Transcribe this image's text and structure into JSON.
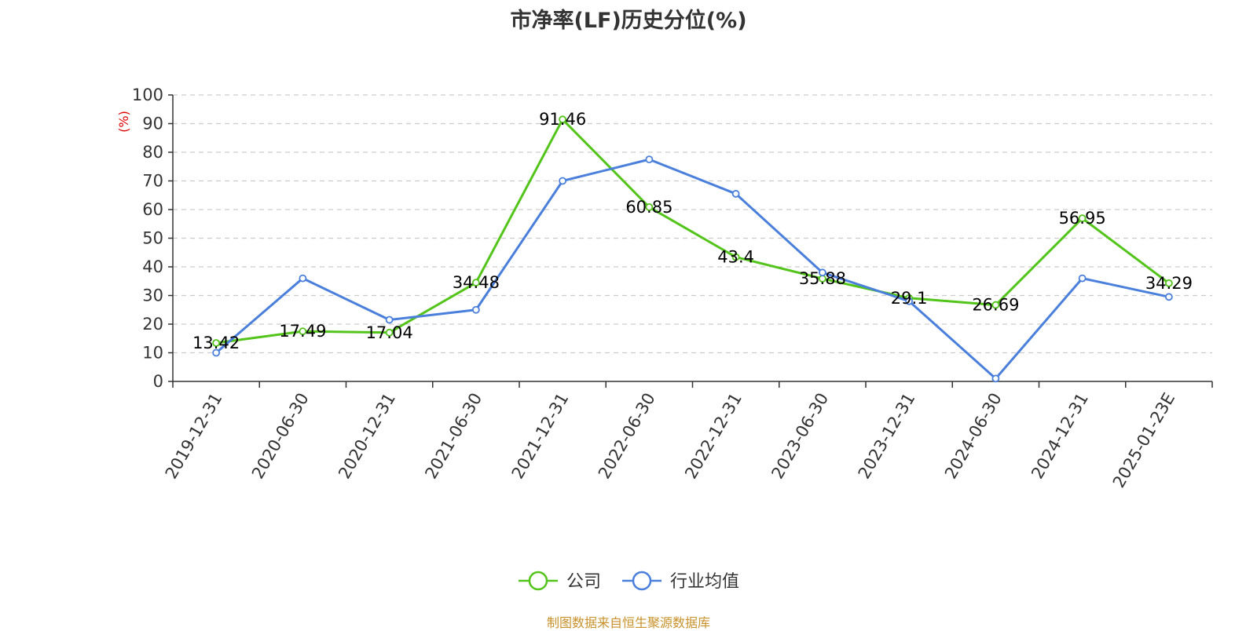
{
  "title": "市净率(LF)历史分位(%)",
  "source": "制图数据来自恒生聚源数据库",
  "chart_data": {
    "type": "line",
    "title": "市净率(LF)历史分位(%)",
    "xlabel": "",
    "ylabel": "(%)",
    "ylim": [
      0,
      100
    ],
    "yticks": [
      0,
      10,
      20,
      30,
      40,
      50,
      60,
      70,
      80,
      90,
      100
    ],
    "grid": "horizontal-dashed",
    "legend": "bottom-center",
    "categories": [
      "2019-12-31",
      "2020-06-30",
      "2020-12-31",
      "2021-06-30",
      "2021-12-31",
      "2022-06-30",
      "2022-12-31",
      "2023-06-30",
      "2023-12-31",
      "2024-06-30",
      "2024-12-31",
      "2025-01-23E"
    ],
    "series": [
      {
        "name": "公司",
        "color": "#52c41a",
        "show_labels": true,
        "values": [
          13.42,
          17.49,
          17.04,
          34.48,
          91.46,
          60.85,
          43.4,
          35.88,
          29.1,
          26.69,
          56.95,
          34.29
        ],
        "labels": [
          "13.42",
          "17.49",
          "17.04",
          "34.48",
          "91.46",
          "60.85",
          "43.4",
          "35.88",
          "29.1",
          "26.69",
          "56.95",
          "34.29"
        ]
      },
      {
        "name": "行业均值",
        "color": "#4a7fdc",
        "show_labels": false,
        "values": [
          10,
          36,
          21.5,
          25,
          70,
          77.5,
          65.5,
          38,
          28,
          1,
          36,
          29.5
        ]
      }
    ]
  }
}
